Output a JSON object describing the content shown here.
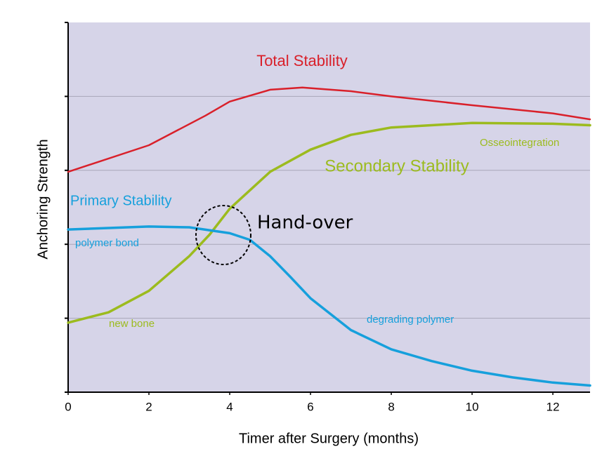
{
  "chart_data": {
    "type": "line",
    "xlabel": "Timer after Surgery (months)",
    "ylabel": "Anchoring Strength",
    "xlim": [
      0,
      12.92
    ],
    "xticks": [
      0,
      2,
      4,
      6,
      8,
      10,
      12
    ],
    "ylim": [
      0,
      5
    ],
    "yticks": [
      0,
      1,
      2,
      3,
      4,
      5
    ],
    "ytick_labels": false,
    "grid": true,
    "background": "#d6d4e8",
    "series": [
      {
        "name": "Total Stability",
        "color": "#d9202a",
        "x": [
          0,
          2,
          3.4,
          4,
          5,
          5.8,
          7,
          8,
          10,
          12,
          12.92
        ],
        "values": [
          2.98,
          3.34,
          3.74,
          3.93,
          4.09,
          4.12,
          4.07,
          4.0,
          3.88,
          3.77,
          3.69
        ]
      },
      {
        "name": "Secondary Stability",
        "color": "#9cbb1e",
        "x": [
          0,
          1,
          2,
          3,
          3.5,
          4,
          5,
          6,
          7,
          8,
          10,
          12,
          12.92
        ],
        "values": [
          0.94,
          1.08,
          1.37,
          1.84,
          2.13,
          2.48,
          2.98,
          3.28,
          3.48,
          3.58,
          3.64,
          3.63,
          3.61
        ]
      },
      {
        "name": "Primary Stability",
        "color": "#16a0dc",
        "x": [
          0,
          1,
          2,
          3,
          4,
          4.5,
          5,
          5.5,
          6,
          7,
          8,
          9,
          10,
          11,
          12,
          12.92
        ],
        "values": [
          2.2,
          2.22,
          2.24,
          2.23,
          2.15,
          2.06,
          1.84,
          1.56,
          1.27,
          0.84,
          0.58,
          0.42,
          0.29,
          0.2,
          0.13,
          0.09
        ]
      }
    ],
    "annotations": [
      {
        "text": "Osseointegration",
        "color": "#9cbb1e"
      },
      {
        "text": "polymer bond",
        "color": "#16a0dc"
      },
      {
        "text": "new bone",
        "color": "#9cbb1e"
      },
      {
        "text": "degrading polymer",
        "color": "#16a0dc"
      },
      {
        "text": "Hand-over",
        "color": "#000000"
      }
    ]
  }
}
